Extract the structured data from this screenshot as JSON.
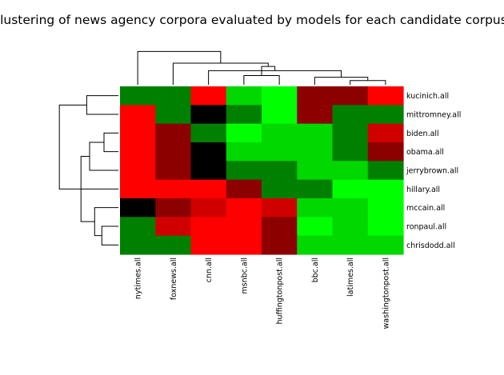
{
  "chart_data": {
    "type": "heatmap",
    "title": "Clustering of news agency corpora evaluated by models for each candidate corpus.",
    "columns": [
      "nytimes.all",
      "foxnews.all",
      "cnn.all",
      "msnbc.all",
      "huffingtonpost.all",
      "bbc.all",
      "latimes.all",
      "washingtonpost.all"
    ],
    "rows": [
      "kucinich.all",
      "mittromney.all",
      "biden.all",
      "obama.all",
      "jerrybrown.all",
      "hillary.all",
      "mccain.all",
      "ronpaul.all",
      "chrisdodd.all"
    ],
    "colors": {
      "K": "#000000",
      "DR": "#8c0000",
      "R2": "#d10000",
      "R": "#ff0000",
      "DG": "#008000",
      "G": "#00d800",
      "BG": "#00ff00",
      "MG": "#00bf00"
    },
    "cells": [
      [
        "DG",
        "DG",
        "R",
        "G",
        "BG",
        "DR",
        "DR",
        "R"
      ],
      [
        "R",
        "DG",
        "K",
        "DG",
        "BG",
        "DR",
        "DG",
        "DG"
      ],
      [
        "R",
        "DR",
        "DG",
        "BG",
        "G",
        "G",
        "DG",
        "R2"
      ],
      [
        "R",
        "DR",
        "K",
        "G",
        "G",
        "G",
        "DG",
        "DR"
      ],
      [
        "R",
        "DR",
        "K",
        "DG",
        "DG",
        "G",
        "G",
        "DG"
      ],
      [
        "R",
        "R",
        "R",
        "DR",
        "DG",
        "DG",
        "BG",
        "BG"
      ],
      [
        "K",
        "DR",
        "R2",
        "R",
        "R2",
        "G",
        "G",
        "BG"
      ],
      [
        "DG",
        "R2",
        "R",
        "R",
        "DR",
        "BG",
        "G",
        "BG"
      ],
      [
        "DG",
        "DG",
        "R",
        "R",
        "DR",
        "G",
        "G",
        "G"
      ]
    ],
    "column_dendrogram": [
      [
        6,
        7,
        0.1
      ],
      [
        5,
        8,
        0.18
      ],
      [
        3,
        4,
        0.22
      ],
      [
        2,
        9,
        0.34
      ],
      [
        10,
        11,
        0.44
      ],
      [
        1,
        12,
        0.52
      ],
      [
        0,
        13,
        0.8
      ]
    ],
    "row_dendrogram": [
      [
        2,
        3,
        0.2
      ],
      [
        7,
        8,
        0.23
      ],
      [
        6,
        10,
        0.33
      ],
      [
        4,
        9,
        0.4
      ],
      [
        0,
        1,
        0.44
      ],
      [
        11,
        12,
        0.52
      ],
      [
        5,
        14,
        0.58
      ],
      [
        13,
        15,
        0.82
      ]
    ]
  }
}
